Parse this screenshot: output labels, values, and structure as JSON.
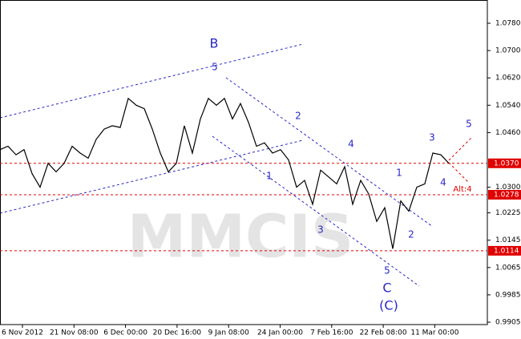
{
  "chart_data": {
    "type": "line",
    "series": [
      {
        "color": "#000000",
        "values": [
          1.041,
          1.042,
          1.0395,
          1.041,
          1.034,
          1.03,
          1.037,
          1.0345,
          1.037,
          1.042,
          1.04,
          1.0385,
          1.044,
          1.047,
          1.048,
          1.0475,
          1.056,
          1.054,
          1.053,
          1.047,
          1.04,
          1.0345,
          1.037,
          1.048,
          1.04,
          1.05,
          1.056,
          1.054,
          1.056,
          1.05,
          1.0545,
          1.049,
          1.042,
          1.043,
          1.04,
          1.041,
          1.038,
          1.03,
          1.032,
          1.025,
          1.035,
          1.033,
          1.031,
          1.036,
          1.025,
          1.032,
          1.028,
          1.02,
          1.024,
          1.012,
          1.026,
          1.023,
          1.03,
          1.031,
          1.04,
          1.0395,
          1.037
        ]
      }
    ],
    "xticks": [
      "6 Nov 2012",
      "21 Nov 08:00",
      "6 Dec 00:00",
      "20 Dec 16:00",
      "9 Jan 08:00",
      "24 Jan 00:00",
      "7 Feb 16:00",
      "22 Feb 08:00",
      "11 Mar 00:00"
    ],
    "ylim": [
      0.9898,
      1.0848
    ],
    "yticks": [
      {
        "value": 1.078,
        "label": "1.0780"
      },
      {
        "value": 1.07,
        "label": "1.0700"
      },
      {
        "value": 1.062,
        "label": "1.0620"
      },
      {
        "value": 1.054,
        "label": "1.0540"
      },
      {
        "value": 1.046,
        "label": "1.0460"
      },
      {
        "value": 1.03,
        "label": "1.0300"
      },
      {
        "value": 1.0225,
        "label": "1.0225"
      },
      {
        "value": 1.0145,
        "label": "1.0145"
      },
      {
        "value": 1.0065,
        "label": "1.0065"
      },
      {
        "value": 0.9985,
        "label": "0.9985"
      },
      {
        "value": 0.9905,
        "label": "0.9905"
      }
    ],
    "levels": [
      {
        "value": 1.037,
        "label": "1.0370"
      },
      {
        "value": 1.0278,
        "label": "1.0278"
      },
      {
        "value": 1.0114,
        "label": "1.0114"
      }
    ],
    "level_color": "#e00000",
    "annotations": [
      "B",
      "5",
      "2",
      "4",
      "1",
      "3",
      "5",
      "C",
      "(C)",
      "1",
      "2",
      "3",
      "4",
      "5",
      "Alt:4"
    ],
    "watermark": "MMCIS"
  }
}
